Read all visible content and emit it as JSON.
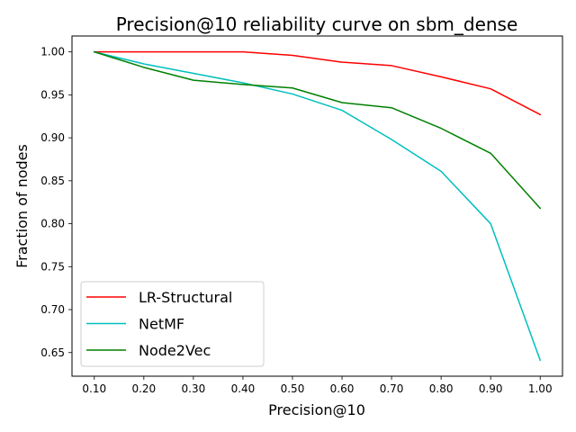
{
  "chart_data": {
    "type": "line",
    "title": "Precision@10 reliability curve on sbm_dense",
    "xlabel": "Precision@10",
    "ylabel": "Fraction of nodes",
    "xlim": [
      0.055,
      1.045
    ],
    "ylim": [
      0.6225,
      1.0185
    ],
    "x": [
      0.1,
      0.2,
      0.3,
      0.4,
      0.5,
      0.6,
      0.7,
      0.8,
      0.9,
      1.0
    ],
    "x_tick_labels": [
      "0.10",
      "0.20",
      "0.30",
      "0.40",
      "0.50",
      "0.60",
      "0.70",
      "0.80",
      "0.90",
      "1.00"
    ],
    "y_ticks": [
      0.65,
      0.7,
      0.75,
      0.8,
      0.85,
      0.9,
      0.95,
      1.0
    ],
    "y_tick_labels": [
      "0.65",
      "0.70",
      "0.75",
      "0.80",
      "0.85",
      "0.90",
      "0.95",
      "1.00"
    ],
    "grid": false,
    "legend_position": "lower-left",
    "series": [
      {
        "name": "LR-Structural",
        "color": "#ff0000",
        "values": [
          1.0,
          1.0,
          1.0,
          1.0,
          0.996,
          0.988,
          0.984,
          0.971,
          0.957,
          0.927
        ]
      },
      {
        "name": "NetMF",
        "color": "#00bfbf",
        "values": [
          1.0,
          0.986,
          0.975,
          0.964,
          0.951,
          0.932,
          0.898,
          0.861,
          0.8,
          0.641
        ]
      },
      {
        "name": "Node2Vec",
        "color": "#008000",
        "values": [
          1.0,
          0.982,
          0.967,
          0.962,
          0.958,
          0.941,
          0.935,
          0.911,
          0.882,
          0.818
        ]
      }
    ]
  }
}
